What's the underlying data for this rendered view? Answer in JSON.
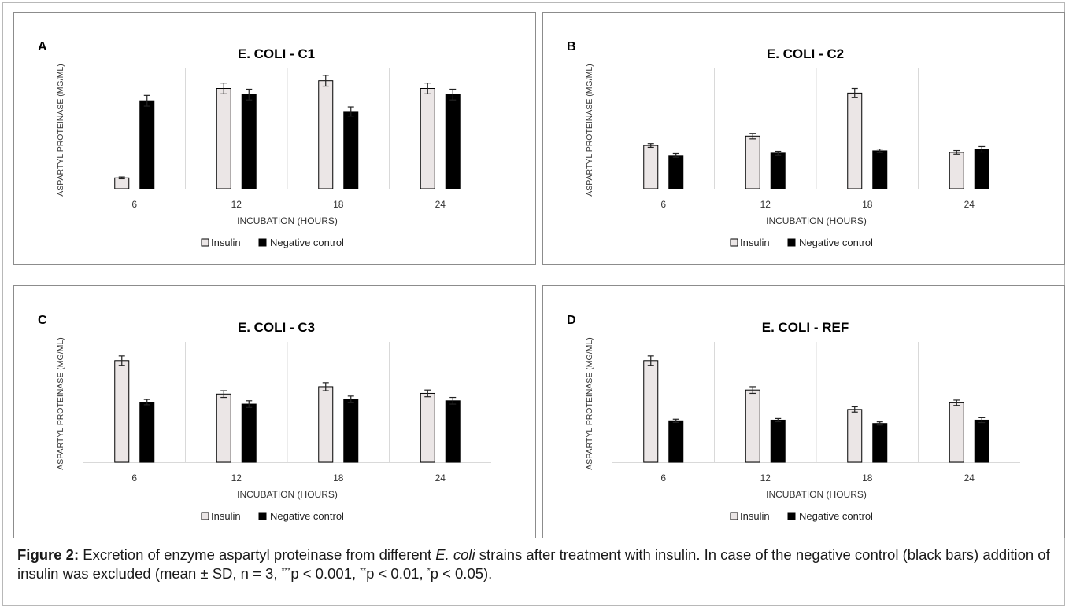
{
  "chart_data": [
    {
      "type": "bar",
      "panel_label": "A",
      "title": "E. COLI - C1",
      "xlabel": "INCUBATION (HOURS)",
      "ylabel": "ASPARTYL PROTEINASE (MG/ML)",
      "categories": [
        "6",
        "12",
        "18",
        "24"
      ],
      "series": [
        {
          "name": "Insulin",
          "values": [
            7,
            65,
            70,
            65
          ],
          "errors": [
            0.6,
            3.5,
            3.5,
            3.5
          ]
        },
        {
          "name": "Negative control",
          "values": [
            57,
            61,
            50,
            61
          ],
          "errors": [
            3.5,
            3.5,
            3,
            3.5
          ]
        }
      ],
      "ylim": [
        0,
        78
      ],
      "legend_position": "bottom"
    },
    {
      "type": "bar",
      "panel_label": "B",
      "title": "E. COLI - C2",
      "xlabel": "INCUBATION (HOURS)",
      "ylabel": "ASPARTYL PROTEINASE (MG/ML)",
      "categories": [
        "6",
        "12",
        "18",
        "24"
      ],
      "series": [
        {
          "name": "Insulin",
          "values": [
            28,
            34,
            62,
            23.5
          ],
          "errors": [
            1.2,
            1.8,
            3,
            1.2
          ]
        },
        {
          "name": "Negative control",
          "values": [
            21.5,
            23,
            24.5,
            25.5
          ],
          "errors": [
            1.2,
            1.2,
            1.2,
            1.8
          ]
        }
      ],
      "ylim": [
        0,
        78
      ],
      "legend_position": "bottom"
    },
    {
      "type": "bar",
      "panel_label": "C",
      "title": "E. COLI - C3",
      "xlabel": "INCUBATION (HOURS)",
      "ylabel": "ASPARTYL PROTEINASE (MG/ML)",
      "categories": [
        "6",
        "12",
        "18",
        "24"
      ],
      "series": [
        {
          "name": "Insulin",
          "values": [
            76,
            51,
            56.5,
            51.5
          ],
          "errors": [
            3.5,
            2.5,
            3,
            2.5
          ]
        },
        {
          "name": "Negative control",
          "values": [
            45,
            43.5,
            47,
            46
          ],
          "errors": [
            2,
            2.5,
            2.5,
            2.5
          ]
        }
      ],
      "ylim": [
        0,
        90
      ],
      "legend_position": "bottom"
    },
    {
      "type": "bar",
      "panel_label": "D",
      "title": "E. COLI - REF",
      "xlabel": "INCUBATION (HOURS)",
      "ylabel": "ASPARTYL PROTEINASE (MG/ML)",
      "categories": [
        "6",
        "12",
        "18",
        "24"
      ],
      "series": [
        {
          "name": "Insulin",
          "values": [
            76,
            54,
            39.5,
            44.5
          ],
          "errors": [
            3.5,
            2.5,
            2,
            2
          ]
        },
        {
          "name": "Negative control",
          "values": [
            31,
            31.5,
            29,
            31.5
          ],
          "errors": [
            1.2,
            1.2,
            1.2,
            1.8
          ]
        }
      ],
      "ylim": [
        0,
        90
      ],
      "legend_position": "bottom"
    }
  ],
  "colors": {
    "insulin_fill": "#ebe6e6",
    "negative_control_fill": "#000000",
    "panel_border": "#8c8c8c",
    "gridline": "#d9d9d9"
  },
  "caption": {
    "label": "Figure 2:",
    "part1": " Excretion of enzyme aspartyl proteinase from different ",
    "species": "E. coli",
    "part2": " strains after treatment with insulin. In case of the negative control (black bars) addition of insulin was excluded (mean ± SD, n = 3, ",
    "sig1_mark": "***",
    "sig1_text": "p < 0.001, ",
    "sig2_mark": "**",
    "sig2_text": "p < 0.01, ",
    "sig3_mark": "*",
    "sig3_text": "p < 0.05)."
  }
}
